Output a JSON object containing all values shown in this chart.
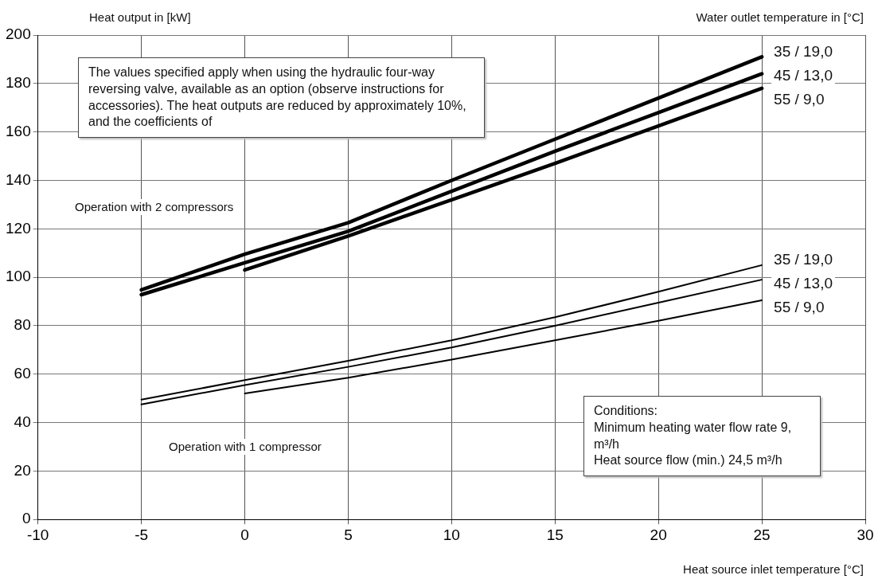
{
  "chart_data": {
    "type": "line",
    "xlabel": "Heat source inlet temperature [°C]",
    "ylabel": "Heat output in [kW]",
    "legend_title": "Water outlet temperature in [°C]",
    "xlim": [
      -10,
      30
    ],
    "xticks": [
      -10,
      -5,
      0,
      5,
      10,
      15,
      20,
      25,
      30
    ],
    "ylim": [
      0,
      200
    ],
    "yticks": [
      0,
      20,
      40,
      60,
      80,
      100,
      120,
      140,
      160,
      180,
      200
    ],
    "grid": true,
    "legend": false,
    "marker": "none",
    "line_style": "solid",
    "series": [
      {
        "name": "35 / 19,0",
        "color": "#000000",
        "x": [
          -5,
          0,
          5,
          10,
          15,
          20,
          25
        ],
        "values": [
          94.8,
          109.5,
          122.5,
          140,
          157,
          174,
          191
        ]
      },
      {
        "name": "45 / 13,0",
        "color": "#000000",
        "x": [
          -5,
          0,
          5,
          10,
          15,
          20,
          25
        ],
        "values": [
          92.8,
          106,
          119,
          135.5,
          152,
          168,
          184
        ]
      },
      {
        "name": "55 / 9,0",
        "color": "#000000",
        "x": [
          0,
          5,
          10,
          15,
          20,
          25
        ],
        "values": [
          103,
          117,
          132,
          147,
          162.5,
          178
        ]
      },
      {
        "name": "35 / 19,0",
        "color": "#000000",
        "x": [
          -5,
          0,
          5,
          10,
          15,
          20,
          25
        ],
        "values": [
          49.5,
          57.5,
          65.5,
          74,
          83.5,
          94,
          105
        ]
      },
      {
        "name": "45 / 13,0",
        "color": "#000000",
        "x": [
          -5,
          0,
          5,
          10,
          15,
          20,
          25
        ],
        "values": [
          47.5,
          55.5,
          63,
          71,
          80,
          89.5,
          99
        ]
      },
      {
        "name": "55 / 9,0",
        "color": "#000000",
        "x": [
          0,
          5,
          10,
          15,
          20,
          25
        ],
        "values": [
          52,
          58.5,
          66,
          74,
          82,
          90.5
        ]
      }
    ],
    "annotations": [
      "The values specified apply when using the hydraulic four-way reversing valve, available as an option (observe instructions for accessories). The heat outputs are reduced by approximately 10%, and the coefficients of",
      "Operation with 2 compressors",
      "Operation with 1 compressor",
      "Conditions:\nMinimum heating water flow rate 9,\nm³/h\nHeat source flow (min.) 24,5 m³/h"
    ]
  }
}
